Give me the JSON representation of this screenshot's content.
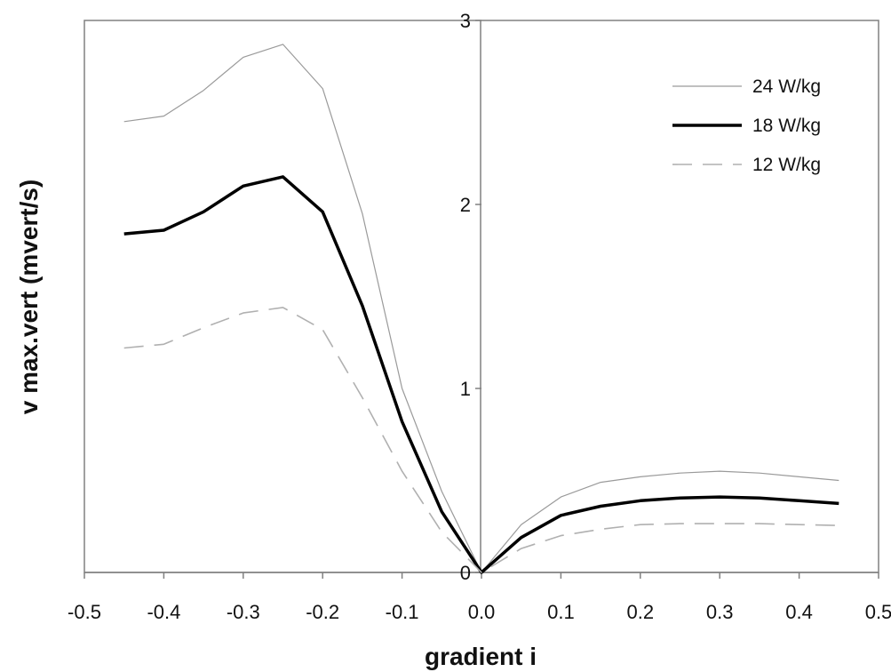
{
  "chart_data": {
    "type": "line",
    "title": "",
    "xlabel": "gradient i",
    "ylabel": "v max.vert (mvert/s)",
    "xlim": [
      -0.5,
      0.5
    ],
    "ylim": [
      0,
      3
    ],
    "x_ticks": [
      "-0.5",
      "-0.4",
      "-0.3",
      "-0.2",
      "-0.1",
      "0.0",
      "0.1",
      "0.2",
      "0.3",
      "0.4",
      "0.5"
    ],
    "y_ticks": [
      "0",
      "1",
      "2",
      "3"
    ],
    "grid": false,
    "legend_position": "top-right",
    "x": [
      -0.45,
      -0.4,
      -0.35,
      -0.3,
      -0.25,
      -0.2,
      -0.15,
      -0.1,
      -0.05,
      0.0,
      0.05,
      0.1,
      0.15,
      0.2,
      0.25,
      0.3,
      0.35,
      0.4,
      0.45
    ],
    "series": [
      {
        "name": "24 W/kg",
        "color": "#9a9a9a",
        "style": "thin",
        "values": [
          2.45,
          2.48,
          2.62,
          2.8,
          2.87,
          2.63,
          1.95,
          1.0,
          0.44,
          0.0,
          0.26,
          0.41,
          0.49,
          0.52,
          0.54,
          0.55,
          0.54,
          0.52,
          0.5
        ]
      },
      {
        "name": "18 W/kg",
        "color": "#000000",
        "style": "thick",
        "values": [
          1.84,
          1.86,
          1.96,
          2.1,
          2.15,
          1.96,
          1.45,
          0.82,
          0.33,
          0.0,
          0.19,
          0.31,
          0.36,
          0.39,
          0.405,
          0.41,
          0.405,
          0.39,
          0.375
        ]
      },
      {
        "name": "12 W/kg",
        "color": "#b0b0b0",
        "style": "dashed",
        "values": [
          1.22,
          1.24,
          1.33,
          1.41,
          1.44,
          1.32,
          0.95,
          0.55,
          0.22,
          0.0,
          0.13,
          0.2,
          0.235,
          0.26,
          0.265,
          0.265,
          0.265,
          0.26,
          0.255
        ]
      }
    ]
  }
}
